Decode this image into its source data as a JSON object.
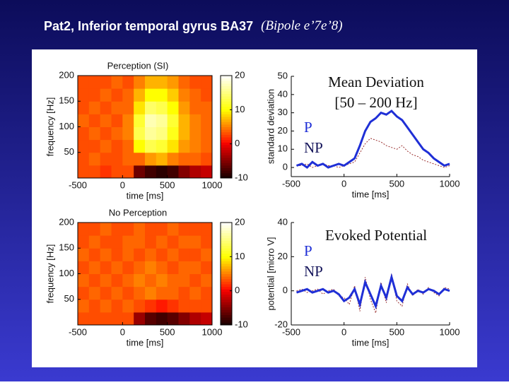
{
  "title": "Pat2, Inferior temporal gyrus BA37",
  "title_note": "(Bipole e’7e’8)",
  "chart_data": [
    {
      "type": "heatmap",
      "title": "Perception (SI)",
      "x_label": "time [ms]",
      "y_label": "frequency [Hz]",
      "xlim": [
        -500,
        1000
      ],
      "xticks": [
        -500,
        0,
        500,
        1000
      ],
      "ylim": [
        0,
        200
      ],
      "yticks": [
        50,
        100,
        150,
        200
      ],
      "zlim": [
        -10,
        20
      ],
      "zticks": [
        -10,
        0,
        10,
        20
      ],
      "colormap": "hot",
      "x": [
        -437.5,
        -312.5,
        -187.5,
        -62.5,
        62.5,
        187.5,
        312.5,
        437.5,
        562.5,
        687.5,
        812.5,
        937.5
      ],
      "y": [
        12.5,
        37.5,
        62.5,
        87.5,
        112.5,
        137.5,
        162.5,
        187.5
      ],
      "z": [
        [
          3,
          3,
          2,
          3,
          3,
          -6,
          -8,
          -9,
          -8,
          -5,
          -3,
          -2
        ],
        [
          3,
          4,
          3,
          3,
          4,
          4,
          6,
          7,
          5,
          4,
          4,
          3
        ],
        [
          3,
          3,
          4,
          3,
          4,
          10,
          13,
          12,
          9,
          6,
          5,
          4
        ],
        [
          3,
          4,
          3,
          4,
          5,
          13,
          16,
          15,
          11,
          7,
          5,
          4
        ],
        [
          4,
          3,
          4,
          3,
          5,
          12,
          17,
          16,
          12,
          7,
          5,
          4
        ],
        [
          3,
          4,
          3,
          4,
          4,
          9,
          14,
          13,
          10,
          6,
          4,
          4
        ],
        [
          3,
          3,
          4,
          3,
          4,
          7,
          10,
          10,
          8,
          5,
          4,
          3
        ],
        [
          3,
          3,
          3,
          4,
          3,
          5,
          7,
          7,
          6,
          4,
          3,
          3
        ]
      ]
    },
    {
      "type": "line",
      "annotation": [
        "Mean Deviation",
        "[50 – 200 Hz]"
      ],
      "x_label": "time [ms]",
      "y_label": "standard deviation",
      "xlim": [
        -500,
        1000
      ],
      "xticks": [
        -500,
        0,
        500,
        1000
      ],
      "ylim": [
        -5,
        50
      ],
      "yticks": [
        0,
        10,
        20,
        30,
        40,
        50
      ],
      "x": [
        -450,
        -400,
        -350,
        -300,
        -250,
        -200,
        -150,
        -100,
        -50,
        0,
        50,
        100,
        150,
        200,
        250,
        300,
        350,
        400,
        450,
        500,
        550,
        600,
        650,
        700,
        750,
        800,
        850,
        900,
        950,
        1000
      ],
      "series": [
        {
          "name": "P",
          "color": "#1f2fd6",
          "label_color": "#1f2fd6",
          "dash": false,
          "values": [
            1,
            2,
            0,
            3,
            1,
            2,
            0,
            1,
            2,
            1,
            3,
            5,
            12,
            20,
            25,
            27,
            30,
            29,
            31,
            28,
            26,
            22,
            18,
            14,
            10,
            8,
            5,
            3,
            1,
            2
          ]
        },
        {
          "name": "NP",
          "color": "#9a3030",
          "label_color": "#14145a",
          "dash": true,
          "values": [
            1,
            1,
            2,
            0,
            1,
            2,
            1,
            1,
            0,
            1,
            2,
            3,
            8,
            13,
            16,
            15,
            14,
            12,
            11,
            10,
            12,
            9,
            7,
            6,
            4,
            3,
            2,
            1,
            0,
            1
          ]
        }
      ]
    },
    {
      "type": "heatmap",
      "title": "No Perception",
      "x_label": "time [ms]",
      "y_label": "frequency [Hz]",
      "xlim": [
        -500,
        1000
      ],
      "xticks": [
        -500,
        0,
        500,
        1000
      ],
      "ylim": [
        0,
        200
      ],
      "yticks": [
        50,
        100,
        150,
        200
      ],
      "zlim": [
        -10,
        20
      ],
      "zticks": [
        -10,
        0,
        10,
        20
      ],
      "colormap": "hot",
      "x": [
        -437.5,
        -312.5,
        -187.5,
        -62.5,
        62.5,
        187.5,
        312.5,
        437.5,
        562.5,
        687.5,
        812.5,
        937.5
      ],
      "y": [
        12.5,
        37.5,
        62.5,
        87.5,
        112.5,
        137.5,
        162.5,
        187.5
      ],
      "z": [
        [
          3,
          3,
          3,
          3,
          3,
          -4,
          -7,
          -8,
          -7,
          -5,
          -3,
          -2
        ],
        [
          4,
          3,
          4,
          3,
          4,
          3,
          2,
          1,
          2,
          3,
          3,
          3
        ],
        [
          3,
          4,
          3,
          4,
          3,
          4,
          5,
          4,
          4,
          3,
          4,
          3
        ],
        [
          4,
          3,
          4,
          3,
          4,
          5,
          4,
          5,
          4,
          4,
          3,
          4
        ],
        [
          3,
          4,
          3,
          4,
          3,
          4,
          5,
          4,
          3,
          4,
          4,
          3
        ],
        [
          4,
          3,
          4,
          3,
          4,
          3,
          4,
          3,
          4,
          3,
          3,
          4
        ],
        [
          3,
          4,
          3,
          3,
          4,
          4,
          3,
          4,
          3,
          4,
          4,
          3
        ],
        [
          3,
          3,
          4,
          3,
          3,
          4,
          3,
          3,
          4,
          3,
          3,
          3
        ]
      ]
    },
    {
      "type": "line",
      "annotation": [
        "Evoked Potential"
      ],
      "x_label": "time [ms]",
      "y_label": "potential [micro V]",
      "xlim": [
        -500,
        1000
      ],
      "xticks": [
        -500,
        0,
        500,
        1000
      ],
      "ylim": [
        -20,
        40
      ],
      "yticks": [
        -20,
        0,
        20,
        40
      ],
      "x": [
        -450,
        -400,
        -350,
        -300,
        -250,
        -200,
        -150,
        -100,
        -50,
        0,
        50,
        100,
        150,
        200,
        250,
        300,
        350,
        400,
        450,
        500,
        550,
        600,
        650,
        700,
        750,
        800,
        850,
        900,
        950,
        1000
      ],
      "series": [
        {
          "name": "P",
          "color": "#1f2fd6",
          "label_color": "#1f2fd6",
          "dash": false,
          "values": [
            -1,
            0,
            1,
            -1,
            0,
            1,
            -1,
            0,
            -2,
            -6,
            -4,
            1,
            -8,
            5,
            -2,
            -9,
            3,
            -4,
            8,
            -3,
            -6,
            2,
            -2,
            0,
            -1,
            1,
            0,
            -2,
            1,
            0
          ]
        },
        {
          "name": "NP",
          "color": "#9a3030",
          "label_color": "#14145a",
          "dash": true,
          "values": [
            0,
            1,
            -1,
            0,
            1,
            -2,
            0,
            1,
            -3,
            -4,
            -8,
            3,
            -12,
            8,
            -5,
            -13,
            5,
            -7,
            10,
            -6,
            -9,
            4,
            -3,
            1,
            -2,
            2,
            -1,
            -3,
            2,
            1
          ]
        }
      ]
    }
  ]
}
